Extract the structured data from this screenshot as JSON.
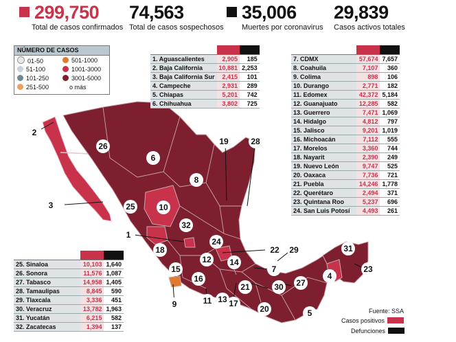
{
  "stats": [
    {
      "value": "299,750",
      "label": "Total de casos confirmados",
      "square_color": "#c8334b",
      "value_color": "#c8334b"
    },
    {
      "value": "74,563",
      "label": "Total de casos sospechosos",
      "square_color": "",
      "value_color": "#111111"
    },
    {
      "value": "35,006",
      "label": "Muertes por coronavirus",
      "square_color": "#111111",
      "value_color": "#111111"
    },
    {
      "value": "29,839",
      "label": "Casos activos totales",
      "square_color": "",
      "value_color": "#111111"
    }
  ],
  "legend": {
    "title": "NÚMERO DE CASOS",
    "items": [
      {
        "label": "01-50",
        "color": "#e8e8e8"
      },
      {
        "label": "501-1000",
        "color": "#e07a2e"
      },
      {
        "label": "51-100",
        "color": "#c4d3dc"
      },
      {
        "label": "1001-3000",
        "color": "#c8334b"
      },
      {
        "label": "101-250",
        "color": "#6f8896"
      },
      {
        "label": "3001-5000",
        "color": "#7d1f2e"
      },
      {
        "label": "251-500",
        "color": "#f0a05a"
      },
      {
        "label": "o más",
        "color": ""
      }
    ]
  },
  "table1": [
    {
      "name": "1. Aguascalientes",
      "pos": "2,905",
      "def": "185"
    },
    {
      "name": "2. Baja California",
      "pos": "10,881",
      "def": "2,253"
    },
    {
      "name": "3. Baja California Sur",
      "pos": "2,415",
      "def": "101"
    },
    {
      "name": "4. Campeche",
      "pos": "2,931",
      "def": "289"
    },
    {
      "name": "5. Chiapas",
      "pos": "5,201",
      "def": "742"
    },
    {
      "name": "6. Chihuahua",
      "pos": "3,802",
      "def": "725"
    }
  ],
  "table2": [
    {
      "name": "7. CDMX",
      "pos": "57,674",
      "def": "7,657"
    },
    {
      "name": "8. Coahuila",
      "pos": "7,107",
      "def": "360"
    },
    {
      "name": "9. Colima",
      "pos": "898",
      "def": "106"
    },
    {
      "name": "10. Durango",
      "pos": "2,771",
      "def": "182"
    },
    {
      "name": "11. Edomex",
      "pos": "42,372",
      "def": "5,184"
    },
    {
      "name": "12. Guanajuato",
      "pos": "12,285",
      "def": "582"
    },
    {
      "name": "13. Guerrero",
      "pos": "7,471",
      "def": "1,069"
    },
    {
      "name": "14. Hidalgo",
      "pos": "4,812",
      "def": "797"
    },
    {
      "name": "15. Jalisco",
      "pos": "9,201",
      "def": "1,019"
    },
    {
      "name": "16. Michoacán",
      "pos": "7,112",
      "def": "555"
    },
    {
      "name": "17. Morelos",
      "pos": "3,360",
      "def": "744"
    },
    {
      "name": "18. Nayarit",
      "pos": "2,390",
      "def": "249"
    },
    {
      "name": "19. Nuevo León",
      "pos": "9,747",
      "def": "525"
    },
    {
      "name": "20. Oaxaca",
      "pos": "7,736",
      "def": "721"
    },
    {
      "name": "21. Puebla",
      "pos": "14,246",
      "def": "1,778"
    },
    {
      "name": "22. Querétaro",
      "pos": "2,494",
      "def": "371"
    },
    {
      "name": "23. Quintana Roo",
      "pos": "5,237",
      "def": "696"
    },
    {
      "name": "24. San Luis Potosí",
      "pos": "4,493",
      "def": "261"
    }
  ],
  "table3": [
    {
      "name": "25. Sinaloa",
      "pos": "10,103",
      "def": "1,640"
    },
    {
      "name": "26. Sonora",
      "pos": "11,576",
      "def": "1,087"
    },
    {
      "name": "27. Tabasco",
      "pos": "14,958",
      "def": "1,405"
    },
    {
      "name": "28. Tamaulipas",
      "pos": "8,845",
      "def": "590"
    },
    {
      "name": "29. Tlaxcala",
      "pos": "3,336",
      "def": "451"
    },
    {
      "name": "30. Veracruz",
      "pos": "13,782",
      "def": "1,963"
    },
    {
      "name": "31. Yucatán",
      "pos": "6,215",
      "def": "582"
    },
    {
      "name": "32. Zacatecas",
      "pos": "1,394",
      "def": "137"
    }
  ],
  "source": "Fuente: SSA",
  "key": {
    "positive_label": "Casos positivos",
    "positive_color": "#c8334b",
    "deaths_label": "Defunciones",
    "deaths_color": "#111111"
  },
  "map_labels": [
    "2",
    "26",
    "6",
    "19",
    "28",
    "8",
    "3",
    "25",
    "10",
    "32",
    "1",
    "24",
    "22",
    "29",
    "18",
    "12",
    "14",
    "7",
    "15",
    "16",
    "21",
    "11",
    "13",
    "17",
    "30",
    "27",
    "20",
    "5",
    "9",
    "4",
    "31",
    "23"
  ],
  "map_colors": {
    "dark": "#7d1f2e",
    "mid": "#a02a3c",
    "light": "#c8334b",
    "orange": "#e07a2e",
    "border": "#caa6ad"
  }
}
